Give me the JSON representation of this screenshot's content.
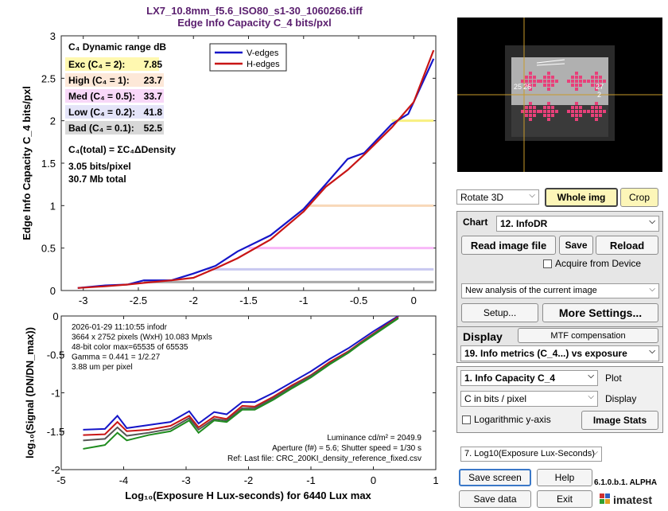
{
  "figure": {
    "title_line1": "LX7_10.8mm_f5.6_ISO80_s1-30_1060266.tiff",
    "title_line2": "Edge Info Capacity C_4 bits/pxl"
  },
  "chart_data": [
    {
      "type": "line",
      "ylabel": "Edge Info Capacity C_4 bits/pxl",
      "xlim": [
        -3.2,
        0.2
      ],
      "ylim": [
        0,
        3
      ],
      "xticks": [
        "-3",
        "-2.5",
        "-2",
        "-1.5",
        "-1",
        "-0.5",
        "0"
      ],
      "yticks": [
        "0",
        "0.5",
        "1",
        "1.5",
        "2",
        "2.5",
        "3"
      ],
      "grid": false,
      "legend_position": "top-right",
      "legend": [
        "V-edges",
        "H-edges"
      ],
      "series": [
        {
          "name": "V-edges",
          "color": "#1515c8",
          "x": [
            -3.05,
            -2.8,
            -2.6,
            -2.45,
            -2.2,
            -2.0,
            -1.8,
            -1.6,
            -1.3,
            -1.0,
            -0.8,
            -0.6,
            -0.45,
            -0.2,
            -0.05,
            0.18
          ],
          "y": [
            0.03,
            0.06,
            0.07,
            0.12,
            0.12,
            0.2,
            0.29,
            0.46,
            0.65,
            0.96,
            1.25,
            1.55,
            1.62,
            1.96,
            2.08,
            2.73
          ]
        },
        {
          "name": "H-edges",
          "color": "#c81515",
          "x": [
            -3.05,
            -2.8,
            -2.6,
            -2.45,
            -2.2,
            -2.0,
            -1.8,
            -1.6,
            -1.3,
            -1.0,
            -0.8,
            -0.6,
            -0.45,
            -0.2,
            0.0,
            0.18
          ],
          "y": [
            0.03,
            0.05,
            0.07,
            0.09,
            0.12,
            0.15,
            0.26,
            0.38,
            0.6,
            0.93,
            1.22,
            1.42,
            1.6,
            1.92,
            2.22,
            2.83
          ]
        }
      ],
      "threshold_lines": [
        {
          "y": 0.1,
          "x_start": -2.45,
          "color": "#aaaaaa"
        },
        {
          "y": 0.25,
          "x_start": -1.87,
          "color": "#c8c8f0"
        },
        {
          "y": 0.5,
          "x_start": -1.5,
          "color": "#f8b8f8"
        },
        {
          "y": 1.0,
          "x_start": -0.98,
          "color": "#f8d8b8"
        },
        {
          "y": 2.0,
          "x_start": -0.2,
          "color": "#f8f080"
        }
      ],
      "annotations": {
        "header": "C₄ Dynamic range dB",
        "rows": [
          {
            "label": "Exc  (C₄ = 2):",
            "value": "7.85",
            "bg": "#fff8b0"
          },
          {
            "label": "High (C₄ = 1):",
            "value": "23.7",
            "bg": "#fde8d8"
          },
          {
            "label": "Med  (C₄ = 0.5):",
            "value": "33.7",
            "bg": "#f8d8f8"
          },
          {
            "label": "Low  (C₄ = 0.2):",
            "value": "41.8",
            "bg": "#e4e4f8"
          },
          {
            "label": "Bad  (C₄ = 0.1):",
            "value": "52.5",
            "bg": "#d8d8d8"
          }
        ],
        "total_line": "C₄(total) = ΣC₄ΔDensity",
        "bits_line": "3.05 bits/pixel",
        "mb_line": "30.7 Mb total"
      }
    },
    {
      "type": "line",
      "xlabel": "Log₁₀(Exposure H Lux-seconds)  for 6440 Lux max",
      "ylabel": "log₁₀(Signal (DN/DN_max))",
      "xlim": [
        -5,
        1
      ],
      "ylim": [
        -2,
        0
      ],
      "xticks": [
        "-5",
        "-4",
        "-3",
        "-2",
        "-1",
        "0",
        "1"
      ],
      "yticks": [
        "0",
        "-0.5",
        "-1",
        "-1.5",
        "-2"
      ],
      "grid": false,
      "series": [
        {
          "color": "#1515c8",
          "x": [
            -4.65,
            -4.3,
            -4.1,
            -3.95,
            -3.6,
            -3.25,
            -2.95,
            -2.8,
            -2.55,
            -2.35,
            -2.1,
            -1.9,
            -1.6,
            -1.3,
            -1.0,
            -0.7,
            -0.4,
            -0.2,
            0.0,
            0.2,
            0.4
          ],
          "y": [
            -1.48,
            -1.47,
            -1.3,
            -1.46,
            -1.42,
            -1.38,
            -1.24,
            -1.4,
            -1.25,
            -1.28,
            -1.12,
            -1.12,
            -1.0,
            -0.86,
            -0.72,
            -0.56,
            -0.42,
            -0.31,
            -0.2,
            -0.1,
            0.0
          ]
        },
        {
          "color": "#c81515",
          "x": [
            -4.65,
            -4.3,
            -4.1,
            -3.95,
            -3.6,
            -3.25,
            -2.95,
            -2.8,
            -2.55,
            -2.35,
            -2.1,
            -1.9,
            -1.6,
            -1.3,
            -1.0,
            -0.7,
            -0.4,
            -0.2,
            0.0,
            0.2,
            0.4
          ],
          "y": [
            -1.55,
            -1.54,
            -1.38,
            -1.5,
            -1.48,
            -1.43,
            -1.3,
            -1.45,
            -1.31,
            -1.34,
            -1.17,
            -1.18,
            -1.05,
            -0.9,
            -0.77,
            -0.6,
            -0.46,
            -0.34,
            -0.23,
            -0.12,
            -0.01
          ]
        },
        {
          "color": "#555555",
          "x": [
            -4.65,
            -4.3,
            -4.1,
            -3.95,
            -3.6,
            -3.25,
            -2.95,
            -2.8,
            -2.55,
            -2.35,
            -2.1,
            -1.9,
            -1.6,
            -1.3,
            -1.0,
            -0.7,
            -0.4,
            -0.2,
            0.0,
            0.2,
            0.4
          ],
          "y": [
            -1.62,
            -1.6,
            -1.45,
            -1.56,
            -1.52,
            -1.47,
            -1.33,
            -1.48,
            -1.34,
            -1.36,
            -1.2,
            -1.2,
            -1.07,
            -0.92,
            -0.78,
            -0.62,
            -0.47,
            -0.35,
            -0.24,
            -0.13,
            -0.02
          ]
        },
        {
          "color": "#1f8c1f",
          "x": [
            -4.65,
            -4.3,
            -4.1,
            -3.95,
            -3.6,
            -3.25,
            -2.95,
            -2.8,
            -2.55,
            -2.35,
            -2.1,
            -1.9,
            -1.6,
            -1.3,
            -1.0,
            -0.7,
            -0.4,
            -0.2,
            0.0,
            0.2,
            0.4
          ],
          "y": [
            -1.73,
            -1.68,
            -1.52,
            -1.62,
            -1.55,
            -1.5,
            -1.36,
            -1.52,
            -1.36,
            -1.38,
            -1.22,
            -1.22,
            -1.09,
            -0.94,
            -0.8,
            -0.63,
            -0.48,
            -0.36,
            -0.25,
            -0.14,
            -0.03
          ]
        }
      ],
      "info_text": [
        "2026-01-29 11:10:55   infodr",
        "3664 x 2752 pixels (WxH)   10.083 Mpxls",
        "48-bit color  max=65535 of 65535",
        "Gamma = 0.441 = 1/2.27",
        "3.88 um per pixel"
      ],
      "footer_text": [
        "Luminance cd/m² = 2049.9",
        "Aperture (f#) = 5.6;  Shutter speed = 1/30 s",
        "Ref: Last file: CRC_200KI_density_reference_fixed.csv"
      ]
    }
  ],
  "controls": {
    "rotate_select": "Rotate 3D",
    "whole_img": "Whole img",
    "crop": "Crop",
    "chart_label": "Chart",
    "chart_select": "12. InfoDR",
    "read_image": "Read image file",
    "save": "Save",
    "reload": "Reload",
    "acquire": "Acquire from Device",
    "analysis_select": "New analysis of the current image",
    "setup": "Setup...",
    "more_settings": "More Settings...",
    "display_label": "Display",
    "mtf_comp": "MTF compensation",
    "display_select": "19. Info metrics (C_4...) vs exposure",
    "plot_select": "1.  Info Capacity C_4",
    "plot_label": "Plot",
    "units_select": "C in bits / pixel",
    "display_label2": "Display",
    "log_axis": "Logarithmic y-axis",
    "image_stats": "Image Stats",
    "exposure_select": "7. Log10(Exposure Lux-Seconds)",
    "save_screen": "Save screen",
    "help": "Help",
    "version": "6.1.0.b.1. ALPHA",
    "save_data": "Save data",
    "exit": "Exit",
    "brand": "imatest"
  },
  "thumbnail": {
    "labels": [
      "25",
      "26",
      "27",
      "2"
    ]
  }
}
